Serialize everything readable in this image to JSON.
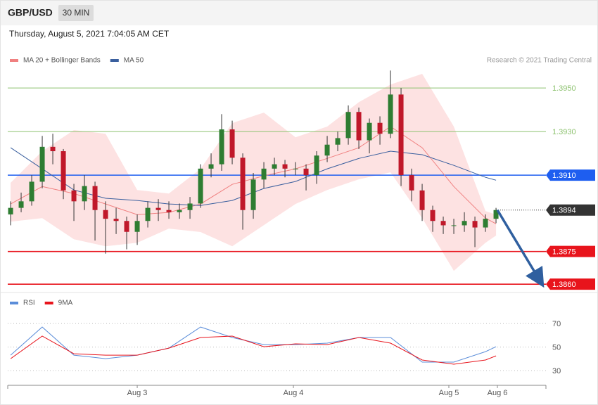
{
  "header": {
    "symbol": "GBP/USD",
    "timeframe": "30 MIN",
    "datetime": "Thursday, August 5, 2021 7:04:05 AM CET"
  },
  "chart_data": [
    {
      "type": "candlestick",
      "source": "Research © 2021 Trading Central",
      "legend": "top-left",
      "xlim": [
        -0.27,
        50.73
      ],
      "ylim": [
        1.38565,
        1.39581
      ],
      "x": [
        0,
        1,
        2,
        3,
        4,
        5,
        6,
        7,
        8,
        9,
        10,
        11,
        12,
        13,
        14,
        15,
        16,
        17,
        18,
        19,
        20,
        21,
        22,
        23,
        24,
        25,
        26,
        27,
        28,
        29,
        30,
        31,
        32,
        33,
        34,
        35,
        36,
        37,
        38,
        39,
        40,
        41,
        42,
        43,
        44,
        45,
        46
      ],
      "open": [
        1.3892,
        1.3895,
        1.3898,
        1.3907,
        1.3923,
        1.3921,
        1.3903,
        1.3898,
        1.3905,
        1.3894,
        1.389,
        1.3889,
        1.3884,
        1.3889,
        1.3895,
        1.3894,
        1.3893,
        1.3894,
        1.3897,
        1.3913,
        1.3915,
        1.3931,
        1.3918,
        1.3894,
        1.3908,
        1.3913,
        1.3915,
        1.3913,
        1.3913,
        1.391,
        1.3919,
        1.3924,
        1.3927,
        1.3939,
        1.3926,
        1.3934,
        1.3929,
        1.3947,
        1.391,
        1.3903,
        1.3894,
        1.3889,
        1.3887,
        1.3887,
        1.3889,
        1.3886,
        1.389
      ],
      "high": [
        1.3898,
        1.3902,
        1.391,
        1.3928,
        1.3929,
        1.3922,
        1.3906,
        1.391,
        1.3907,
        1.3898,
        1.3895,
        1.3891,
        1.3892,
        1.3898,
        1.3899,
        1.3898,
        1.3897,
        1.39,
        1.3915,
        1.392,
        1.3938,
        1.3935,
        1.392,
        1.3911,
        1.3916,
        1.3918,
        1.3917,
        1.3916,
        1.3915,
        1.3921,
        1.3928,
        1.393,
        1.3942,
        1.3941,
        1.3936,
        1.3937,
        1.3958,
        1.395,
        1.3913,
        1.3906,
        1.3896,
        1.3891,
        1.389,
        1.3893,
        1.3891,
        1.3892,
        1.3895
      ],
      "low": [
        1.3887,
        1.3893,
        1.3896,
        1.3904,
        1.3915,
        1.3899,
        1.3889,
        1.3894,
        1.388,
        1.3874,
        1.3883,
        1.3876,
        1.3878,
        1.3886,
        1.3889,
        1.389,
        1.389,
        1.389,
        1.3895,
        1.3909,
        1.3912,
        1.3915,
        1.3885,
        1.389,
        1.3904,
        1.391,
        1.3909,
        1.391,
        1.3903,
        1.3906,
        1.3916,
        1.3921,
        1.3924,
        1.3922,
        1.392,
        1.3924,
        1.3927,
        1.3905,
        1.3898,
        1.3889,
        1.3884,
        1.3883,
        1.3883,
        1.3884,
        1.3877,
        1.3884,
        1.3888
      ],
      "close": [
        1.3895,
        1.3898,
        1.3907,
        1.3923,
        1.3921,
        1.3903,
        1.3898,
        1.3905,
        1.3894,
        1.389,
        1.3889,
        1.3884,
        1.3889,
        1.3895,
        1.3894,
        1.3893,
        1.3894,
        1.3897,
        1.3913,
        1.3915,
        1.3931,
        1.3918,
        1.3894,
        1.3908,
        1.3913,
        1.3915,
        1.3913,
        1.3913,
        1.391,
        1.3919,
        1.3924,
        1.3927,
        1.3939,
        1.3926,
        1.3934,
        1.3929,
        1.3947,
        1.391,
        1.3903,
        1.3894,
        1.3889,
        1.3887,
        1.3887,
        1.3889,
        1.3886,
        1.389,
        1.3894
      ],
      "up_color": "#2e7d32",
      "down_color": "#c0182a",
      "bands": {
        "color": "#fde2e2",
        "x": [
          0,
          3,
          6,
          9,
          12,
          15,
          18,
          21,
          24,
          27,
          30,
          33,
          36,
          39,
          42,
          45,
          46
        ],
        "upper": [
          1.39065,
          1.3921,
          1.39307,
          1.3929,
          1.39032,
          1.39016,
          1.39129,
          1.39339,
          1.39387,
          1.39274,
          1.39323,
          1.39435,
          1.39516,
          1.39565,
          1.39323,
          1.38935,
          1.38919
        ],
        "lower": [
          1.38887,
          1.38903,
          1.38806,
          1.38774,
          1.3879,
          1.38855,
          1.38839,
          1.38774,
          1.38871,
          1.38968,
          1.39032,
          1.39081,
          1.39113,
          1.38903,
          1.38661,
          1.3879,
          1.38823
        ]
      },
      "series": [
        {
          "name": "MA 20 + Bollinger Bands",
          "color": "#f08080",
          "x": [
            0,
            3,
            6,
            9,
            12,
            15,
            18,
            21,
            24,
            27,
            30,
            33,
            36,
            39,
            42,
            45,
            46
          ],
          "values": [
            1.38968,
            1.39048,
            1.39016,
            1.38968,
            1.38919,
            1.38929,
            1.38968,
            1.39058,
            1.39097,
            1.39129,
            1.39177,
            1.39226,
            1.39323,
            1.39226,
            1.39048,
            1.38903,
            1.38877
          ]
        },
        {
          "name": "MA 50",
          "color": "#3a5f9e",
          "x": [
            0,
            3,
            6,
            9,
            12,
            15,
            18,
            21,
            24,
            27,
            30,
            33,
            36,
            39,
            42,
            45,
            46
          ],
          "values": [
            1.39226,
            1.39129,
            1.39032,
            1.38994,
            1.38984,
            1.38968,
            1.38961,
            1.38984,
            1.39039,
            1.39071,
            1.39129,
            1.39177,
            1.3921,
            1.39194,
            1.39145,
            1.3909,
            1.39077
          ]
        }
      ],
      "levels": [
        {
          "value": 1.395,
          "label": "1.3950",
          "color": "#8dc26f",
          "boxed": false,
          "dotted": false
        },
        {
          "value": 1.393,
          "label": "1.3930",
          "color": "#8dc26f",
          "boxed": false,
          "dotted": false
        },
        {
          "value": 1.391,
          "label": "1.3910",
          "color": "#1e5ef0",
          "boxed": true,
          "dotted": false
        },
        {
          "value": 1.3894,
          "label": "1.3894",
          "color": "#333333",
          "boxed": true,
          "dotted": true
        },
        {
          "value": 1.3875,
          "label": "1.3875",
          "color": "#e8141c",
          "boxed": true,
          "dotted": false
        },
        {
          "value": 1.386,
          "label": "1.3860",
          "color": "#e8141c",
          "boxed": true,
          "dotted": false
        }
      ],
      "forecast_color": "#2f5f9f"
    },
    {
      "type": "line",
      "legend": "top-left",
      "xlim": [
        -0.27,
        50.73
      ],
      "ylim": [
        17.5,
        79
      ],
      "yticks": [
        30,
        50,
        70
      ],
      "grid": true,
      "xticks": [
        {
          "value": 12,
          "label": "Aug 3"
        },
        {
          "value": 26.8,
          "label": "Aug 4"
        },
        {
          "value": 41.53,
          "label": "Aug 5"
        },
        {
          "value": 46.13,
          "label": "Aug 6"
        }
      ],
      "series": [
        {
          "name": "RSI",
          "color": "#5b8dd9",
          "x": [
            0,
            3,
            6,
            9,
            12,
            15,
            18,
            21,
            24,
            27,
            30,
            33,
            36,
            39,
            42,
            45,
            46
          ],
          "values": [
            43.1,
            67,
            43.1,
            40.1,
            43.1,
            49.1,
            67,
            58.1,
            52.1,
            52.1,
            53.3,
            58.1,
            58.1,
            37.2,
            37.2,
            46.1,
            50.3
          ]
        },
        {
          "name": "9MA",
          "color": "#e8141c",
          "x": [
            0,
            3,
            6,
            9,
            12,
            15,
            18,
            21,
            24,
            27,
            30,
            33,
            36,
            39,
            42,
            45,
            46
          ],
          "values": [
            40.1,
            59.3,
            44.3,
            43.1,
            43.1,
            49.1,
            58.1,
            59.3,
            50.3,
            52.7,
            52.1,
            58.1,
            53.3,
            39,
            35.4,
            39,
            42.5
          ]
        }
      ]
    }
  ]
}
